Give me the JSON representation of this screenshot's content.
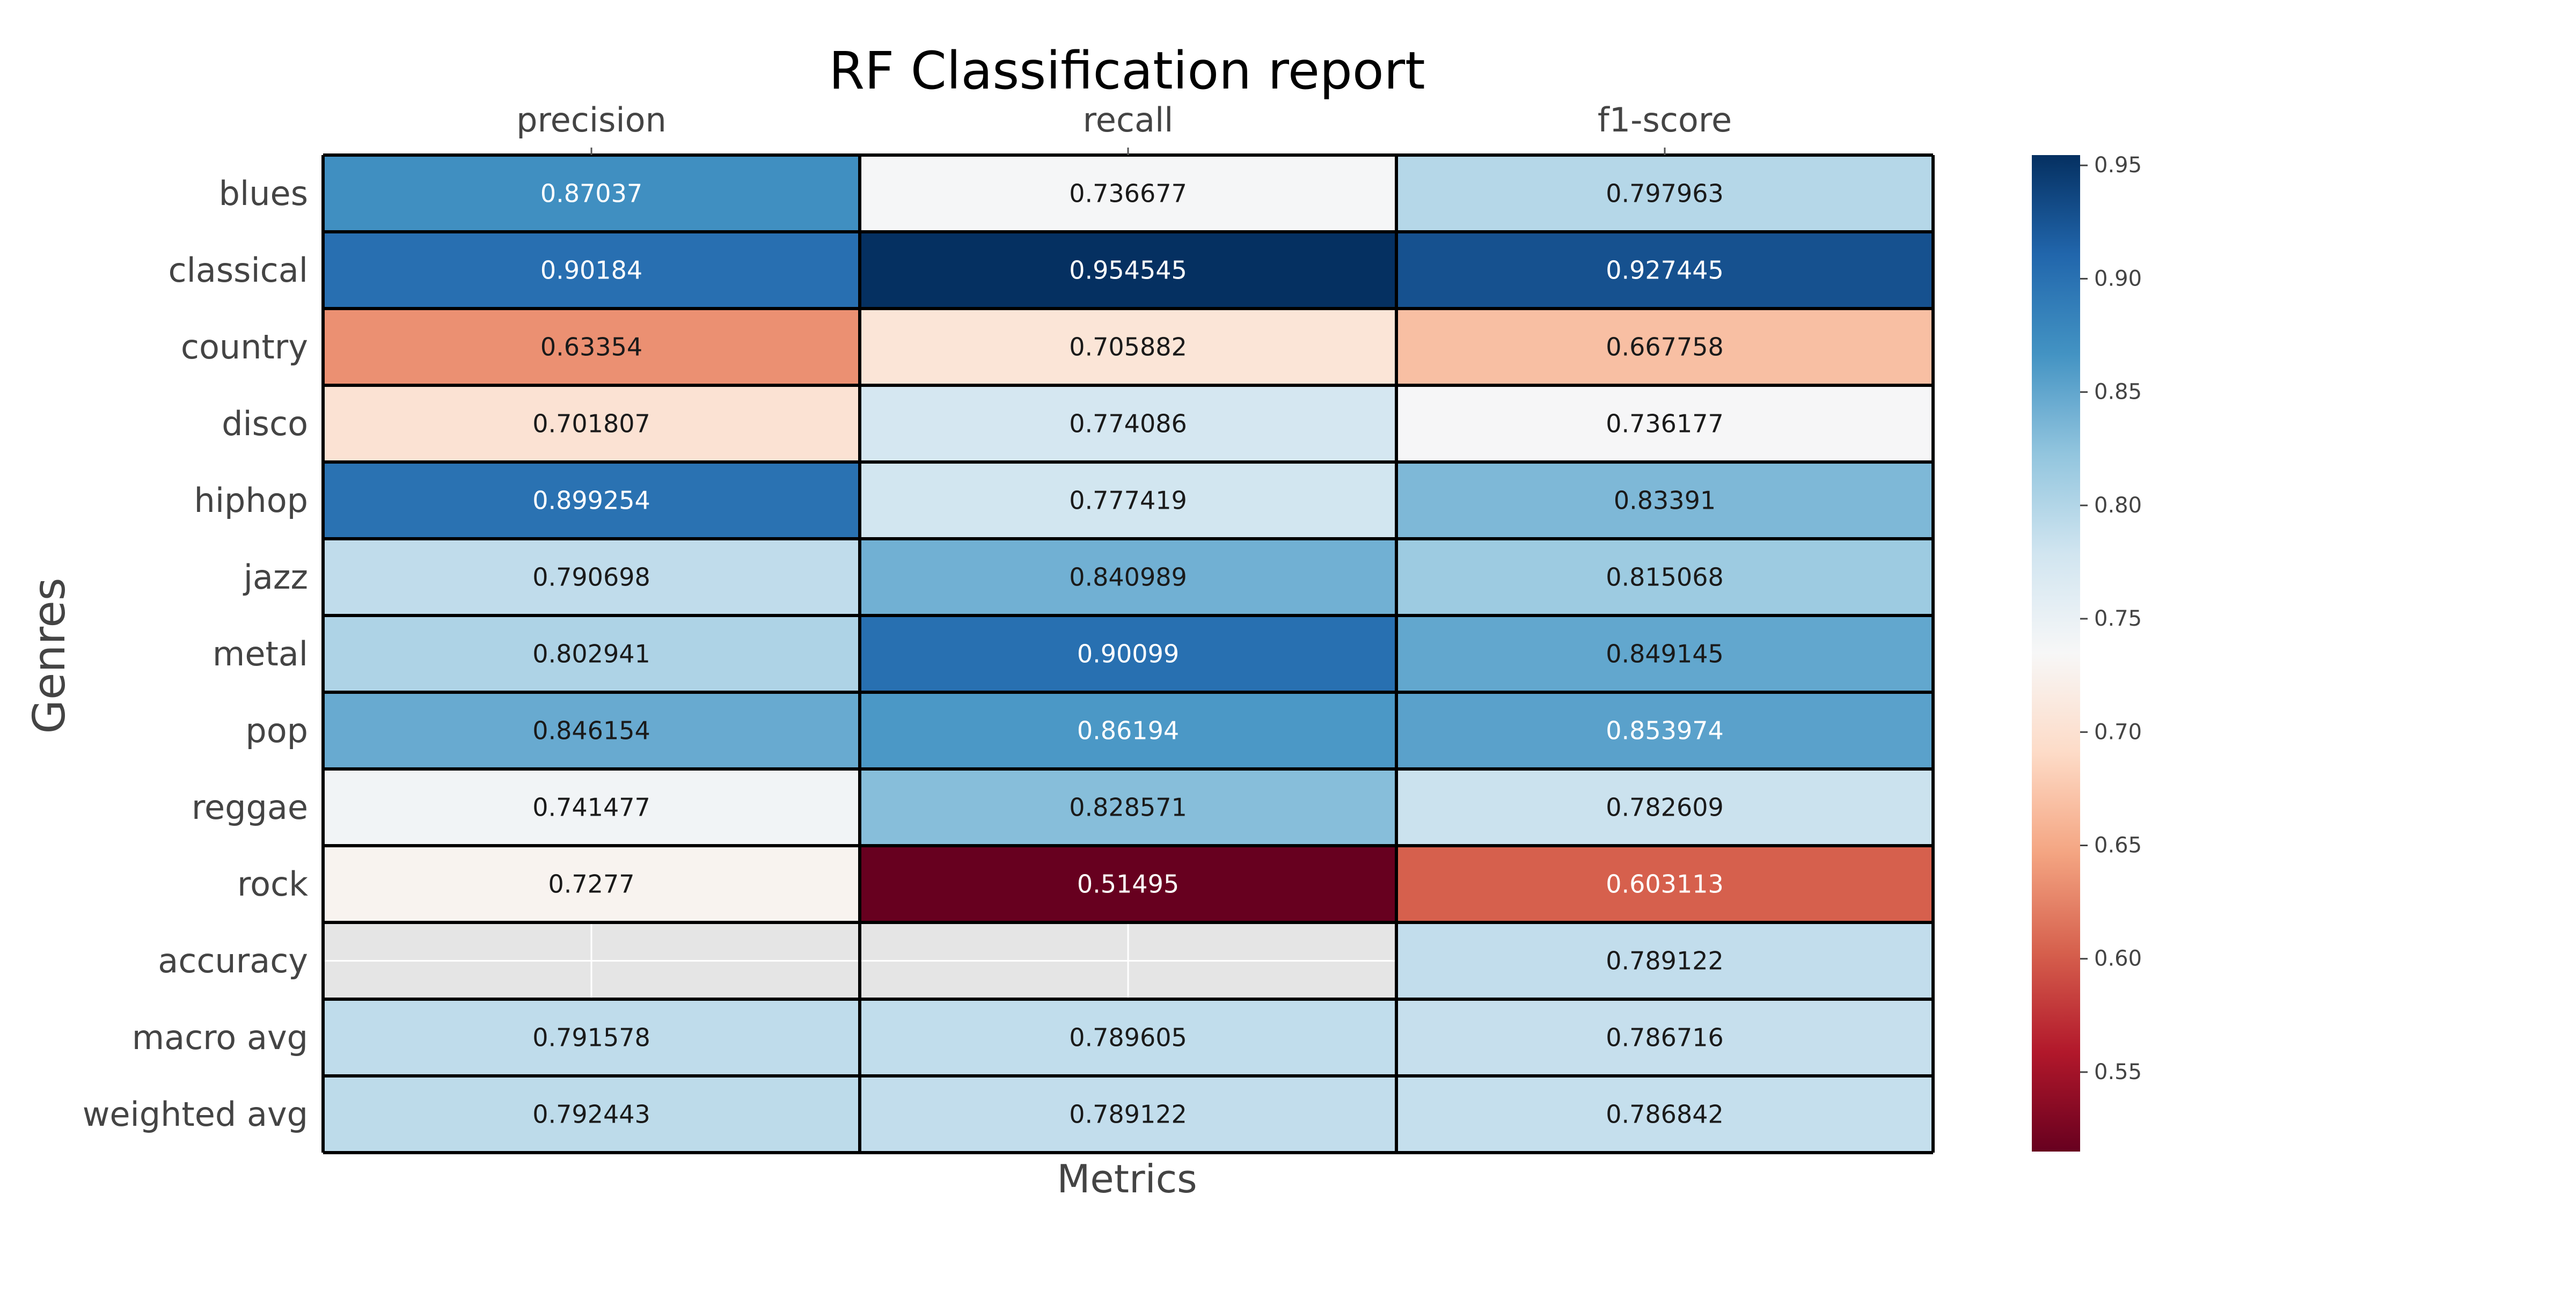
{
  "chart_data": {
    "type": "heatmap",
    "title": "RF Classification report",
    "xlabel": "Metrics",
    "ylabel": "Genres",
    "columns": [
      "precision",
      "recall",
      "f1-score"
    ],
    "rows": [
      "blues",
      "classical",
      "country",
      "disco",
      "hiphop",
      "jazz",
      "metal",
      "pop",
      "reggae",
      "rock",
      "accuracy",
      "macro avg",
      "weighted avg"
    ],
    "values": [
      [
        "0.87037",
        "0.736677",
        "0.797963"
      ],
      [
        "0.90184",
        "0.954545",
        "0.927445"
      ],
      [
        "0.63354",
        "0.705882",
        "0.667758"
      ],
      [
        "0.701807",
        "0.774086",
        "0.736177"
      ],
      [
        "0.899254",
        "0.777419",
        "0.83391"
      ],
      [
        "0.790698",
        "0.840989",
        "0.815068"
      ],
      [
        "0.802941",
        "0.90099",
        "0.849145"
      ],
      [
        "0.846154",
        "0.86194",
        "0.853974"
      ],
      [
        "0.741477",
        "0.828571",
        "0.782609"
      ],
      [
        "0.7277",
        "0.51495",
        "0.603113"
      ],
      [
        null,
        null,
        "0.789122"
      ],
      [
        "0.791578",
        "0.789605",
        "0.786716"
      ],
      [
        "0.792443",
        "0.789122",
        "0.786842"
      ]
    ],
    "colormap": "RdBu",
    "color_range": [
      0.51495,
      0.954545
    ],
    "colorbar_ticks": [
      "0.55",
      "0.60",
      "0.65",
      "0.70",
      "0.75",
      "0.80",
      "0.85",
      "0.90",
      "0.95"
    ],
    "missing_cell_color": "#e5e5e5",
    "grid": true,
    "colorbar_position": "right"
  }
}
